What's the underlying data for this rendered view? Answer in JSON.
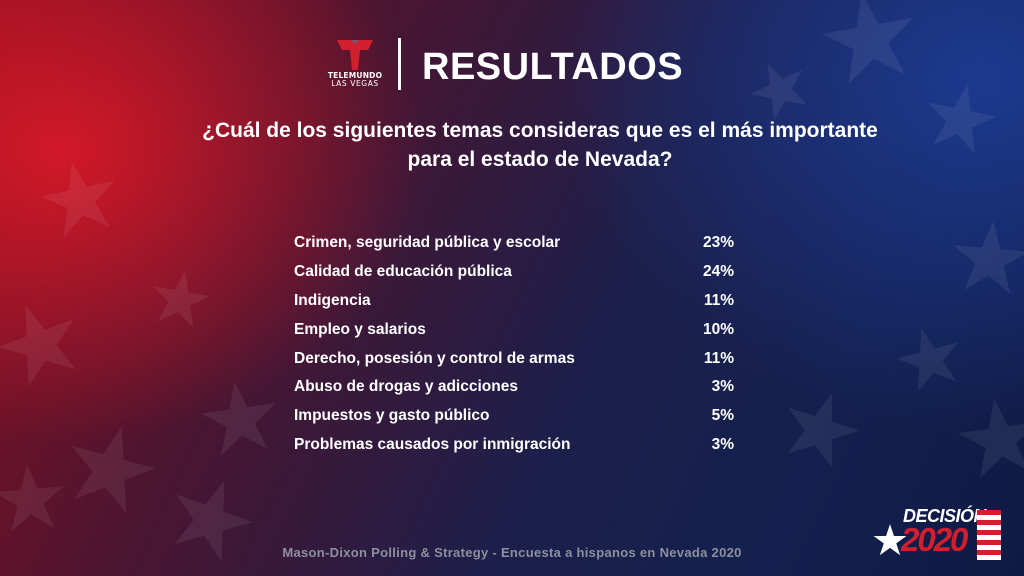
{
  "brand": {
    "name": "TELEMUNDO",
    "region": "LAS VEGAS"
  },
  "header": {
    "title": "RESULTADOS"
  },
  "question": {
    "line1": "¿Cuál de los siguientes temas consideras que es el más importante",
    "line2": "para el estado de Nevada?"
  },
  "results": [
    {
      "label": "Crimen, seguridad pública y escolar",
      "value": "23%"
    },
    {
      "label": "Calidad de educación pública",
      "value": "24%"
    },
    {
      "label": "Indigencia",
      "value": "11%"
    },
    {
      "label": "Empleo y salarios",
      "value": "10%"
    },
    {
      "label": "Derecho, posesión y control de armas",
      "value": "11%"
    },
    {
      "label": "Abuso de drogas y adicciones",
      "value": "3%"
    },
    {
      "label": "Impuestos y gasto público",
      "value": "5%"
    },
    {
      "label": "Problemas causados por inmigración",
      "value": "3%"
    }
  ],
  "footer": {
    "source": "Mason-Dixon Polling & Strategy - Encuesta a hispanos en Nevada 2020"
  },
  "badge": {
    "top": "DECISIÓN",
    "year": "2020"
  },
  "colors": {
    "red": "#d21f2d",
    "navy": "#13204f",
    "source_gray": "#8d8f9e"
  }
}
